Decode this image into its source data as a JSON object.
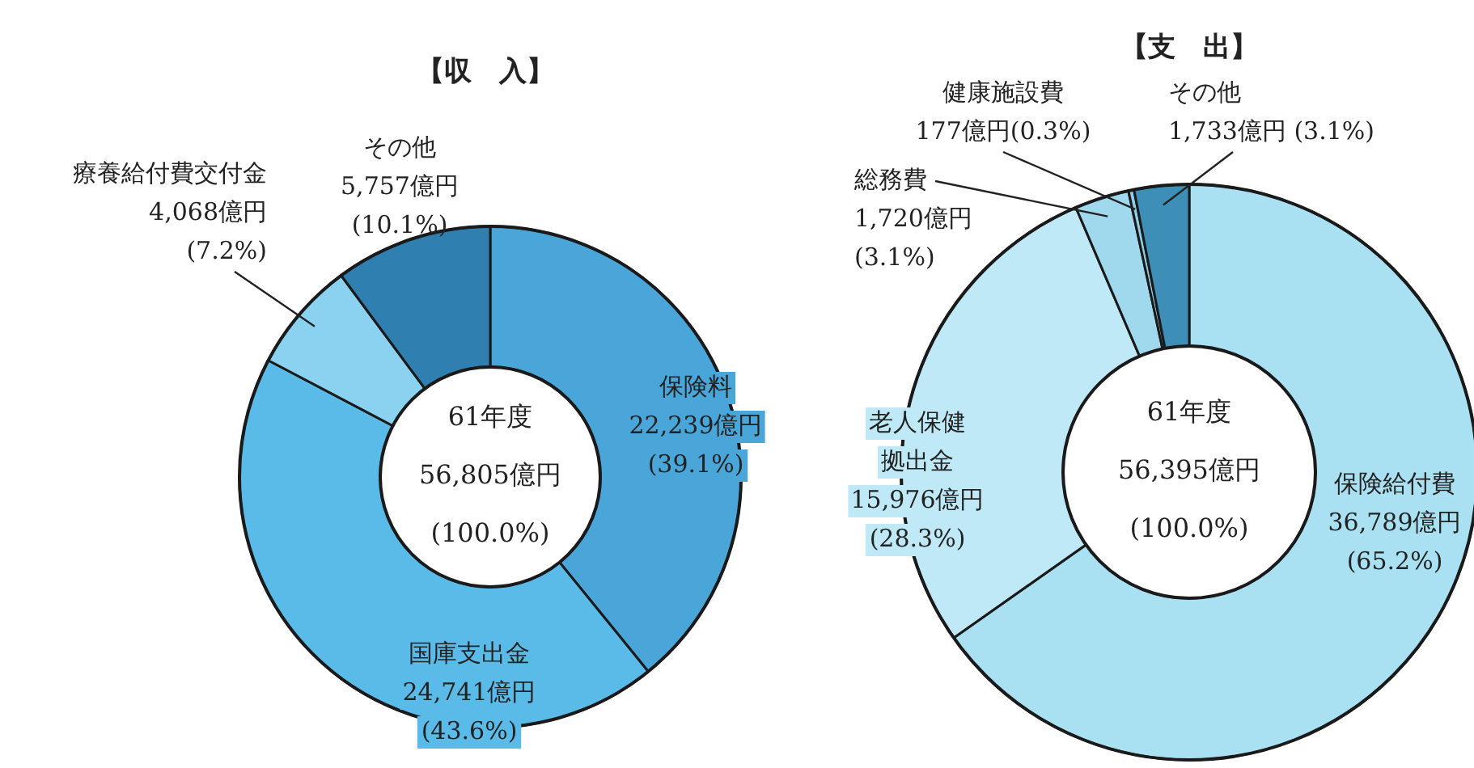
{
  "chart_data": [
    {
      "type": "donut",
      "title": "【収　入】",
      "categories": [
        "保険料",
        "国庫支出金",
        "療養給付費交付金",
        "その他"
      ],
      "values": [
        22239,
        24741,
        4068,
        5757
      ],
      "value_labels": [
        "22,239億円 (39.1%)",
        "24,741億円 (43.6%)",
        "4,068億円 (7.2%)",
        "5,757億円 (10.1%)"
      ],
      "colors": [
        "#4aa6d8",
        "#5bbbe8",
        "#8ad2f0",
        "#2f7fb0"
      ],
      "annotations": [
        "61年度",
        "56,805億円",
        "(100.0%)"
      ]
    },
    {
      "type": "donut",
      "title": "【支　出】",
      "categories": [
        "保険給付費",
        "老人保健拠出金",
        "総務費",
        "健康施設費",
        "その他"
      ],
      "values": [
        36789,
        15976,
        1720,
        177,
        1733
      ],
      "value_labels": [
        "36,789億円 (65.2%)",
        "15,976億円 (28.3%)",
        "1,720億円 (3.1%)",
        "177億円(0.3%)",
        "1,733億円 (3.1%)"
      ],
      "colors": [
        "#a9e0f2",
        "#bfe9f7",
        "#a0d8ee",
        "#8fcde8",
        "#3d8fb8"
      ],
      "annotations": [
        "61年度",
        "56,395億円",
        "(100.0%)"
      ]
    }
  ]
}
